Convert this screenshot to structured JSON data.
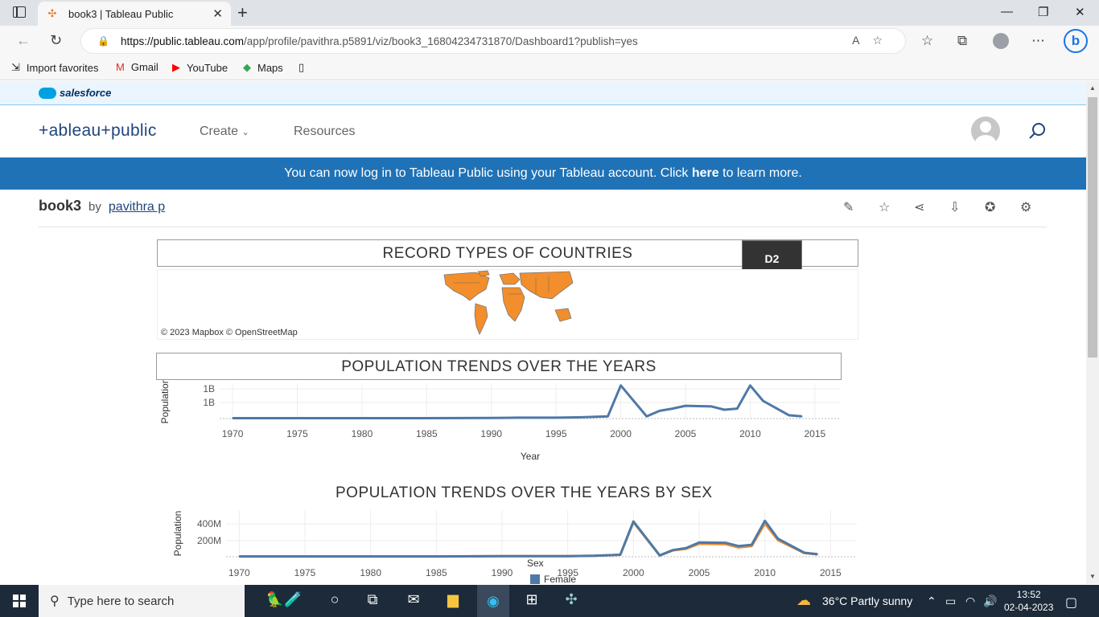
{
  "browser": {
    "tab_title": "book3 | Tableau Public",
    "url_host": "https://public.tableau.com",
    "url_path": "/app/profile/pavithra.p5891/viz/book3_16804234731870/Dashboard1?publish=yes",
    "favorites": [
      "Import favorites",
      "Gmail",
      "YouTube",
      "Maps"
    ]
  },
  "site": {
    "salesforce_label": "salesforce",
    "logo_text": "+ableau+public",
    "nav": [
      "Create",
      "Resources"
    ],
    "banner_prefix": "You can now log in to Tableau Public using your Tableau account. Click ",
    "banner_link": "here",
    "banner_suffix": " to learn more."
  },
  "viz": {
    "name": "book3",
    "by": "by",
    "author": "pavithra p"
  },
  "dashboard": {
    "map_title": "RECORD TYPES OF COUNTRIES",
    "d2_button": "D2",
    "map_credit": "© 2023 Mapbox  © OpenStreetMap",
    "map_fill_color": "#f28e2b",
    "chart1_title": "POPULATION TRENDS OVER THE YEARS",
    "chart2_title": "POPULATION TRENDS OVER THE YEARS BY SEX",
    "legend_title": "Sex",
    "legend_item": "Female"
  },
  "chart_data": [
    {
      "type": "line",
      "title": "POPULATION TRENDS OVER THE YEARS",
      "xlabel": "Year",
      "ylabel": "Population",
      "x_ticks": [
        1970,
        1975,
        1980,
        1985,
        1990,
        1995,
        2000,
        2005,
        2010,
        2015
      ],
      "y_ticks": [
        "1B",
        "1B"
      ],
      "xlim": [
        1969,
        2017
      ],
      "ylim": [
        0,
        1.6
      ],
      "color": "#4e79a7",
      "x": [
        1970,
        1975,
        1980,
        1985,
        1990,
        1992,
        1995,
        1997,
        1999,
        2000,
        2002,
        2003,
        2004,
        2005,
        2007,
        2008,
        2009,
        2010,
        2011,
        2013,
        2014
      ],
      "y": [
        0.02,
        0.02,
        0.02,
        0.02,
        0.03,
        0.04,
        0.04,
        0.06,
        0.1,
        1.5,
        0.1,
        0.35,
        0.45,
        0.58,
        0.55,
        0.4,
        0.45,
        1.5,
        0.8,
        0.15,
        0.1
      ]
    },
    {
      "type": "line",
      "title": "POPULATION TRENDS OVER THE YEARS BY SEX",
      "xlabel": "",
      "ylabel": "Population",
      "x_ticks": [
        1970,
        1975,
        1980,
        1985,
        1990,
        1995,
        2000,
        2005,
        2010,
        2015
      ],
      "y_ticks": [
        "400M",
        "200M"
      ],
      "xlim": [
        1969,
        2017
      ],
      "ylim": [
        0,
        700
      ],
      "series": [
        {
          "name": "Female",
          "color": "#4e79a7",
          "x": [
            1970,
            1975,
            1980,
            1985,
            1990,
            1992,
            1995,
            1997,
            1999,
            2000,
            2002,
            2003,
            2004,
            2005,
            2007,
            2008,
            2009,
            2010,
            2011,
            2013,
            2014
          ],
          "y": [
            5,
            5,
            5,
            5,
            8,
            10,
            10,
            15,
            30,
            530,
            20,
            100,
            130,
            215,
            210,
            160,
            180,
            540,
            270,
            60,
            40
          ]
        },
        {
          "color": "#f28e2b",
          "x": [
            1970,
            1975,
            1980,
            1985,
            1990,
            1992,
            1995,
            1997,
            1999,
            2000,
            2002,
            2003,
            2004,
            2005,
            2007,
            2008,
            2009,
            2010,
            2011,
            2013,
            2014
          ],
          "y": [
            5,
            5,
            5,
            5,
            8,
            10,
            10,
            15,
            30,
            520,
            18,
            95,
            120,
            195,
            190,
            140,
            160,
            500,
            250,
            55,
            35
          ]
        }
      ]
    }
  ],
  "taskbar": {
    "search_placeholder": "Type here to search",
    "weather": "36°C  Partly sunny",
    "time": "13:52",
    "date": "02-04-2023"
  }
}
